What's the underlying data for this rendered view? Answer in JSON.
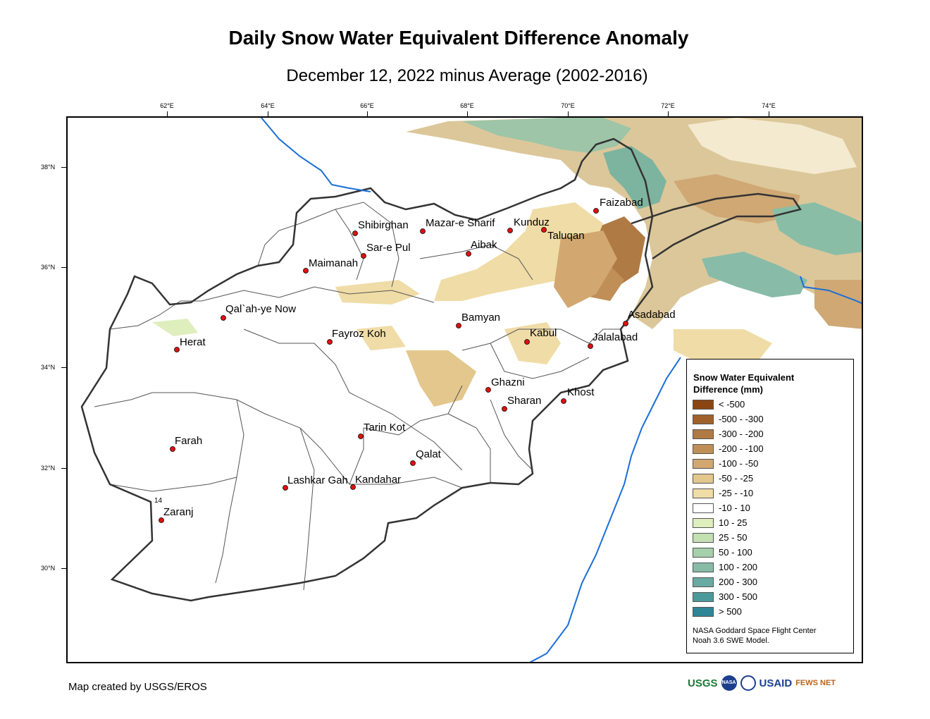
{
  "map": {
    "title": "Daily Snow Water Equivalent Difference Anomaly",
    "subtitle": "December 12, 2022 minus Average (2002-2016)",
    "longitude_ticks": [
      "62°E",
      "64°E",
      "66°E",
      "68°E",
      "70°E",
      "72°E",
      "74°E"
    ],
    "latitude_ticks": [
      "38°N",
      "36°N",
      "34°N",
      "32°N",
      "30°N"
    ],
    "cities": [
      {
        "name": "Faizabad"
      },
      {
        "name": "Shibirghan"
      },
      {
        "name": "Mazar-e Sharif"
      },
      {
        "name": "Kunduz"
      },
      {
        "name": "Taluqan"
      },
      {
        "name": "Sar-e Pul"
      },
      {
        "name": "Aibak"
      },
      {
        "name": "Maimanah"
      },
      {
        "name": "Qal`ah-ye Now"
      },
      {
        "name": "Bamyan"
      },
      {
        "name": "Asadabad"
      },
      {
        "name": "Herat"
      },
      {
        "name": "Fayroz Koh"
      },
      {
        "name": "Kabul"
      },
      {
        "name": "Jalalabad"
      },
      {
        "name": "Ghazni"
      },
      {
        "name": "Khost"
      },
      {
        "name": "Sharan"
      },
      {
        "name": "Farah"
      },
      {
        "name": "Tarin Kot"
      },
      {
        "name": "Qalat"
      },
      {
        "name": "Lashkar Gah"
      },
      {
        "name": "Kandahar"
      },
      {
        "name": "Zaranj"
      }
    ],
    "marker_color": "#e01010",
    "border_color": "#333333",
    "river_color": "#1a6ed8"
  },
  "legend": {
    "title_line1": "Snow Water Equivalent",
    "title_line2": "Difference (mm)",
    "items": [
      {
        "label": "< -500",
        "color": "#8b4513"
      },
      {
        "label": "-500 - -300",
        "color": "#a0622d"
      },
      {
        "label": "-300 - -200",
        "color": "#b07a44"
      },
      {
        "label": "-200 - -100",
        "color": "#c08f58"
      },
      {
        "label": "-100 - -50",
        "color": "#d2a870"
      },
      {
        "label": "-50 - -25",
        "color": "#e3c78d"
      },
      {
        "label": "-25 - -10",
        "color": "#f0dca6"
      },
      {
        "label": "-10 - 10",
        "color": "#ffffff"
      },
      {
        "label": "10 - 25",
        "color": "#dfeebd"
      },
      {
        "label": "25 - 50",
        "color": "#c2e0b0"
      },
      {
        "label": "50 - 100",
        "color": "#a6d0ac"
      },
      {
        "label": "100 - 200",
        "color": "#86bba8"
      },
      {
        "label": "200 - 300",
        "color": "#69aaa3"
      },
      {
        "label": "300 - 500",
        "color": "#4a9a9c"
      },
      {
        "label": "> 500",
        "color": "#2e8594"
      }
    ],
    "credit_line1": "NASA Goddard Space Flight Center",
    "credit_line2": "Noah 3.6 SWE Model."
  },
  "footer": {
    "credit": "Map created by USGS/EROS"
  },
  "logos": {
    "usgs": "USGS",
    "nasa": "NASA",
    "usaid": "USAID",
    "fewsnet": "FEWS NET",
    "usgs_color": "#1e7a3a",
    "nasa_color": "#1b3f8f",
    "usaid_color": "#c8102e",
    "fewsnet_color": "#b5651d"
  },
  "annotation": {
    "small_label": "14"
  }
}
